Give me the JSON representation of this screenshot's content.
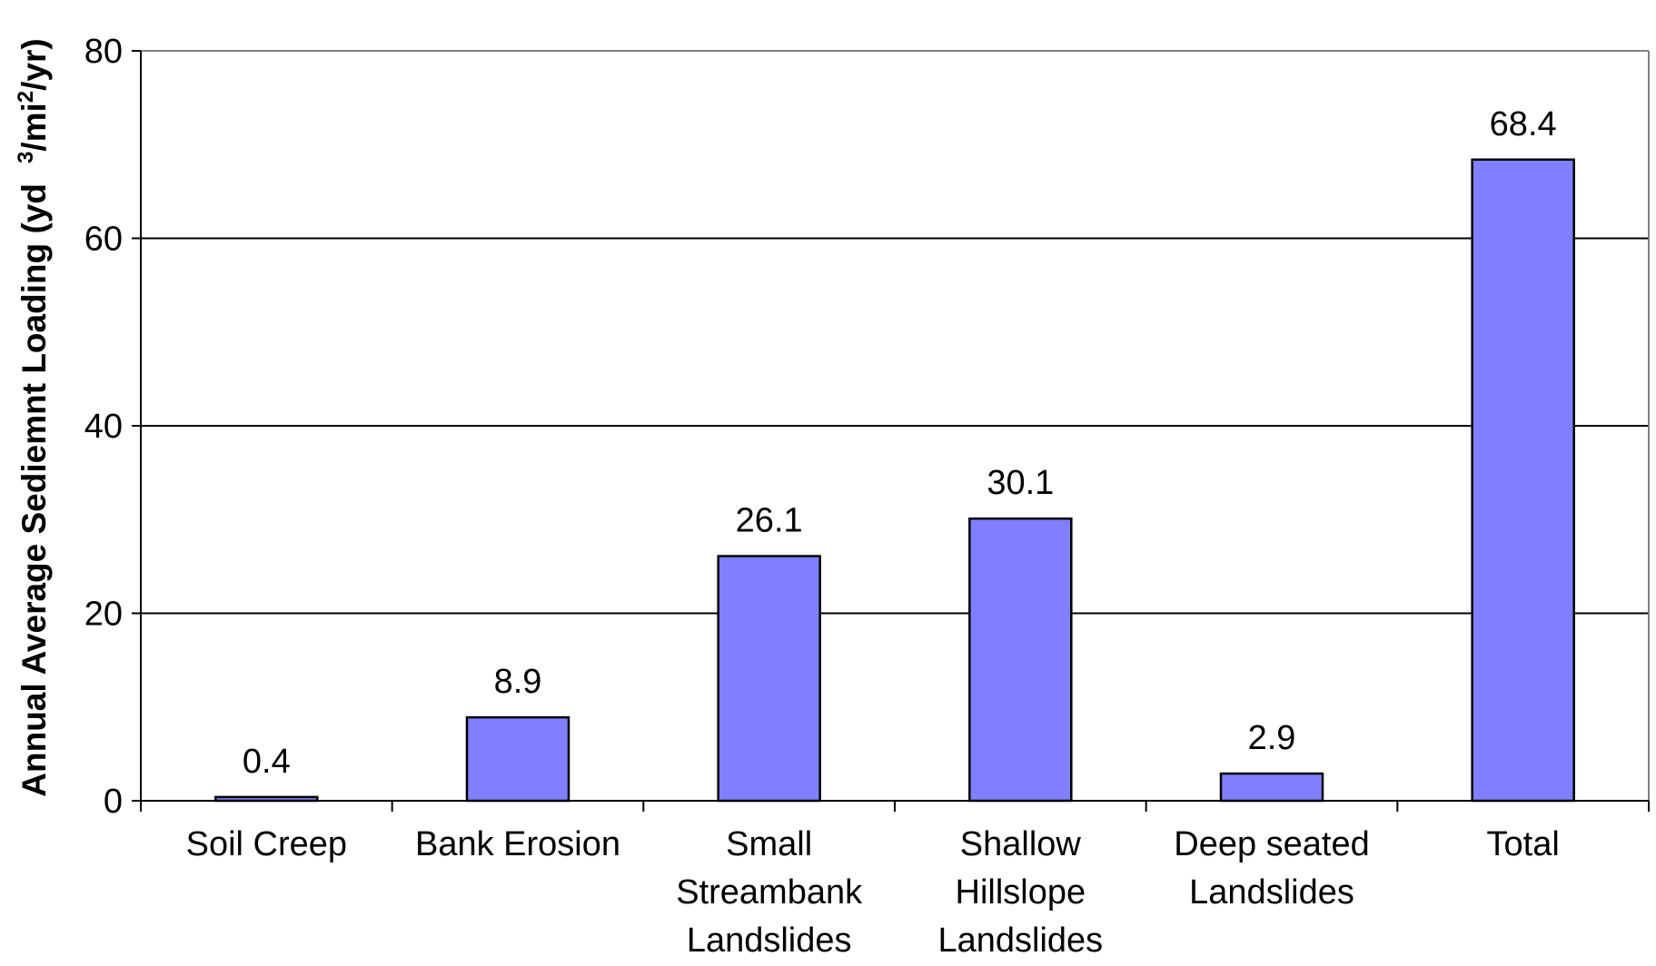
{
  "chart_data": {
    "type": "bar",
    "categories": [
      "Soil Creep",
      "Bank Erosion",
      "Small Streambank Landslides",
      "Shallow Hillslope Landslides",
      "Deep seated Landslides",
      "Total"
    ],
    "category_lines": [
      [
        "Soil Creep"
      ],
      [
        "Bank Erosion"
      ],
      [
        "Small",
        "Streambank",
        "Landslides"
      ],
      [
        "Shallow",
        "Hillslope",
        "Landslides"
      ],
      [
        "Deep seated",
        "Landslides"
      ],
      [
        "Total"
      ]
    ],
    "values": [
      0.4,
      8.9,
      26.1,
      30.1,
      2.9,
      68.4
    ],
    "value_labels": [
      "0.4",
      "8.9",
      "26.1",
      "30.1",
      "2.9",
      "68.4"
    ],
    "title": "",
    "xlabel": "",
    "ylabel": {
      "main": "Annual Average Sediemnt Loading (yd",
      "sup1": "3",
      "mid": "/mi",
      "sup2": "2",
      "end": "/yr)"
    },
    "ylim": [
      0,
      80
    ],
    "yticks": [
      0,
      20,
      40,
      60,
      80
    ],
    "grid": true,
    "legend": "none",
    "bar_color": "#8080ff",
    "bar_edge_color": "#000000"
  }
}
